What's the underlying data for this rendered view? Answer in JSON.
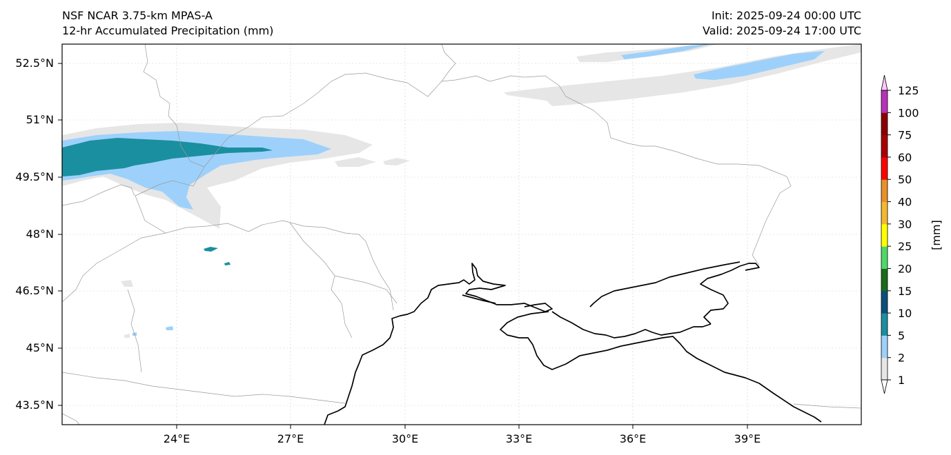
{
  "header": {
    "model": "NSF NCAR 3.75-km MPAS-A",
    "field": "12-hr Accumulated Precipitation (mm)",
    "init": "Init: 2025-09-24 00:00 UTC",
    "valid": "Valid: 2025-09-24 17:00 UTC"
  },
  "map": {
    "lon_ticks": [
      "24°E",
      "27°E",
      "30°E",
      "33°E",
      "36°E",
      "39°E"
    ],
    "lat_ticks": [
      "52.5°N",
      "51°N",
      "49.5°N",
      "48°N",
      "46.5°N",
      "45°N",
      "43.5°N"
    ],
    "lon_range": [
      20.9,
      42.0
    ],
    "lat_range": [
      43.0,
      53.0
    ]
  },
  "colorbar": {
    "unit_label": "[mm]",
    "levels": [
      "1",
      "2",
      "5",
      "10",
      "15",
      "20",
      "25",
      "30",
      "40",
      "50",
      "60",
      "75",
      "100",
      "125"
    ],
    "colors": [
      "#e6e6e6",
      "#9dd1fb",
      "#1a8fa0",
      "#0b4f7c",
      "#1a6b1a",
      "#4fd968",
      "#ffff00",
      "#f5b731",
      "#e8902b",
      "#ff0000",
      "#aa0000",
      "#8b0000",
      "#b832b8",
      "#ffc8f8"
    ],
    "extend_low_color": "#ffffff",
    "extend_high_color": "#ffc8f8"
  }
}
